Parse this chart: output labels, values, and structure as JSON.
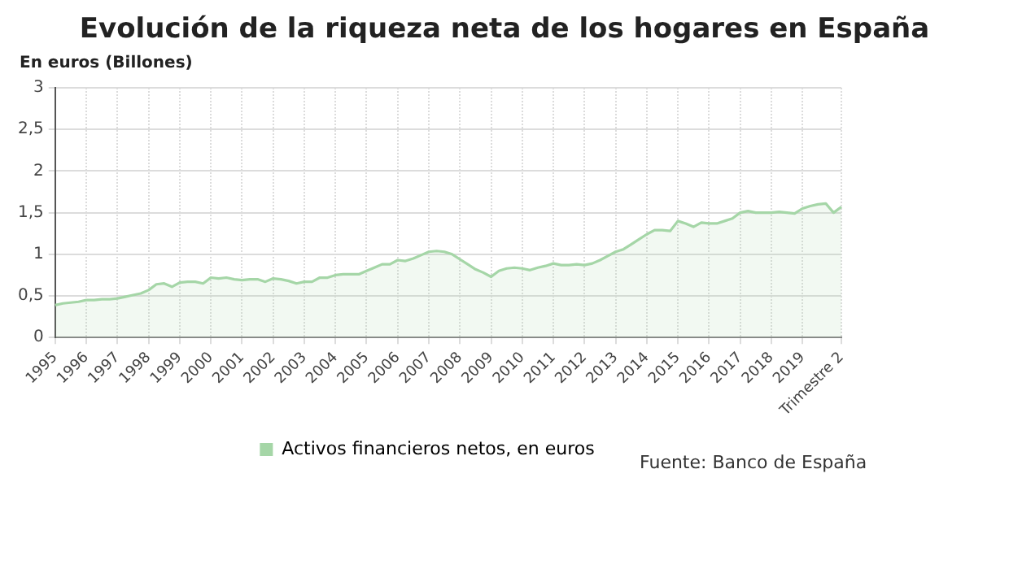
{
  "chart_data": {
    "type": "area",
    "title": "Evolución de la riqueza neta de los hogares en España",
    "ylabel": "En euros (Billones)",
    "categories": [
      "1995",
      null,
      null,
      null,
      "1996",
      null,
      null,
      null,
      "1997",
      null,
      null,
      null,
      "1998",
      null,
      null,
      null,
      "1999",
      null,
      null,
      null,
      "2000",
      null,
      null,
      null,
      "2001",
      null,
      null,
      null,
      "2002",
      null,
      null,
      null,
      "2003",
      null,
      null,
      null,
      "2004",
      null,
      null,
      null,
      "2005",
      null,
      null,
      null,
      "2006",
      null,
      null,
      null,
      "2007",
      null,
      null,
      null,
      "2008",
      null,
      null,
      null,
      "2009",
      null,
      null,
      null,
      "2010",
      null,
      null,
      null,
      "2011",
      null,
      null,
      null,
      "2012",
      null,
      null,
      null,
      "2013",
      null,
      null,
      null,
      "2014",
      null,
      null,
      null,
      "2015",
      null,
      null,
      null,
      "2016",
      null,
      null,
      null,
      "2017",
      null,
      null,
      null,
      "2018",
      null,
      null,
      null,
      "2019",
      null,
      null,
      null,
      null,
      "Trimestre 2"
    ],
    "series": [
      {
        "name": "Activos financieros netos, en euros",
        "color": "#a5d6a7",
        "values": [
          0.39,
          0.41,
          0.42,
          0.43,
          0.45,
          0.45,
          0.46,
          0.46,
          0.47,
          0.49,
          0.51,
          0.53,
          0.57,
          0.64,
          0.65,
          0.61,
          0.66,
          0.67,
          0.67,
          0.65,
          0.72,
          0.71,
          0.72,
          0.7,
          0.69,
          0.7,
          0.7,
          0.67,
          0.71,
          0.7,
          0.68,
          0.65,
          0.67,
          0.67,
          0.72,
          0.72,
          0.75,
          0.76,
          0.76,
          0.76,
          0.8,
          0.84,
          0.88,
          0.88,
          0.93,
          0.92,
          0.95,
          0.99,
          1.03,
          1.04,
          1.03,
          1.0,
          0.94,
          0.88,
          0.82,
          0.78,
          0.73,
          0.8,
          0.83,
          0.84,
          0.83,
          0.81,
          0.84,
          0.86,
          0.89,
          0.87,
          0.87,
          0.88,
          0.87,
          0.89,
          0.93,
          0.98,
          1.03,
          1.06,
          1.12,
          1.18,
          1.24,
          1.29,
          1.29,
          1.28,
          1.4,
          1.37,
          1.33,
          1.38,
          1.37,
          1.37,
          1.4,
          1.43,
          1.5,
          1.52,
          1.5,
          1.5,
          1.5,
          1.51,
          1.5,
          1.49,
          1.55,
          1.58,
          1.6,
          1.61,
          1.5,
          1.57
        ]
      }
    ],
    "ylim": [
      0,
      3
    ],
    "yticks": [
      0,
      {
        "value": 0.5,
        "label": "0,5"
      },
      1,
      {
        "value": 1.5,
        "label": "1,5"
      },
      2,
      {
        "value": 2.5,
        "label": "2,5"
      },
      3
    ],
    "grid": true,
    "legend": "bottom",
    "annotations": [
      "Fuente: Banco de España"
    ]
  }
}
